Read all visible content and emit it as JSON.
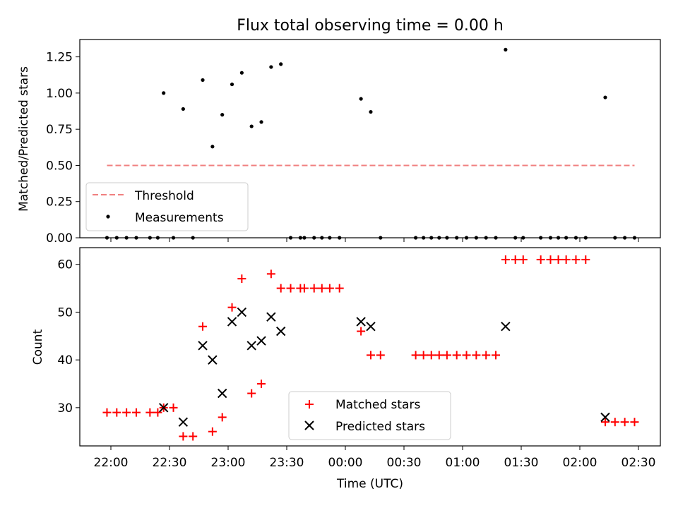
{
  "chart_data": [
    {
      "type": "scatter",
      "title": "Flux total observing time = 0.00 h",
      "ylabel": "Matched/Predicted stars",
      "ylim": [
        0,
        1.37
      ],
      "yticks": [
        "0.00",
        "0.25",
        "0.50",
        "0.75",
        "1.00",
        "1.25"
      ],
      "legend": {
        "placement": "lower-left",
        "entries": [
          "Threshold",
          "Measurements"
        ]
      },
      "threshold": {
        "name": "Threshold",
        "value": 0.5,
        "color": "#f08080",
        "x_start": "21:58",
        "x_end": "02:28"
      },
      "series": [
        {
          "name": "Measurements",
          "color": "#000000",
          "points": [
            [
              "21:58",
              0
            ],
            [
              "22:03",
              0
            ],
            [
              "22:08",
              0
            ],
            [
              "22:13",
              0
            ],
            [
              "22:20",
              0
            ],
            [
              "22:24",
              0
            ],
            [
              "22:27",
              1.0
            ],
            [
              "22:32",
              0
            ],
            [
              "22:37",
              0.89
            ],
            [
              "22:42",
              0
            ],
            [
              "22:47",
              1.09
            ],
            [
              "22:52",
              0.63
            ],
            [
              "22:57",
              0.85
            ],
            [
              "23:02",
              1.06
            ],
            [
              "23:07",
              1.14
            ],
            [
              "23:12",
              0.77
            ],
            [
              "23:17",
              0.8
            ],
            [
              "23:22",
              1.18
            ],
            [
              "23:27",
              1.2
            ],
            [
              "23:32",
              0
            ],
            [
              "23:37",
              0
            ],
            [
              "23:39",
              0
            ],
            [
              "23:44",
              0
            ],
            [
              "23:48",
              0
            ],
            [
              "23:52",
              0
            ],
            [
              "23:57",
              0
            ],
            [
              "00:08",
              0.96
            ],
            [
              "00:13",
              0.87
            ],
            [
              "00:18",
              0
            ],
            [
              "00:36",
              0
            ],
            [
              "00:40",
              0
            ],
            [
              "00:44",
              0
            ],
            [
              "00:48",
              0
            ],
            [
              "00:52",
              0
            ],
            [
              "00:57",
              0
            ],
            [
              "01:02",
              0
            ],
            [
              "01:07",
              0
            ],
            [
              "01:12",
              0
            ],
            [
              "01:17",
              0
            ],
            [
              "01:22",
              1.3
            ],
            [
              "01:27",
              0
            ],
            [
              "01:31",
              0
            ],
            [
              "01:40",
              0
            ],
            [
              "01:45",
              0
            ],
            [
              "01:49",
              0
            ],
            [
              "01:53",
              0
            ],
            [
              "01:58",
              0
            ],
            [
              "02:03",
              0
            ],
            [
              "02:13",
              0.97
            ],
            [
              "02:18",
              0
            ],
            [
              "02:23",
              0
            ],
            [
              "02:28",
              0
            ]
          ]
        }
      ]
    },
    {
      "type": "scatter",
      "xlabel": "Time (UTC)",
      "ylabel": "Count",
      "ylim": [
        22,
        63.5
      ],
      "yticks": [
        "30",
        "40",
        "50",
        "60"
      ],
      "xticks": [
        "22:00",
        "22:30",
        "23:00",
        "23:30",
        "00:00",
        "00:30",
        "01:00",
        "01:30",
        "02:00",
        "02:30"
      ],
      "legend": {
        "placement": "lower-center",
        "entries": [
          "Matched stars",
          "Predicted stars"
        ]
      },
      "series": [
        {
          "name": "Matched stars",
          "color": "#ff0000",
          "marker": "plus",
          "points": [
            [
              "21:58",
              29
            ],
            [
              "22:03",
              29
            ],
            [
              "22:08",
              29
            ],
            [
              "22:13",
              29
            ],
            [
              "22:20",
              29
            ],
            [
              "22:24",
              29
            ],
            [
              "22:27",
              30
            ],
            [
              "22:32",
              30
            ],
            [
              "22:37",
              24
            ],
            [
              "22:42",
              24
            ],
            [
              "22:47",
              47
            ],
            [
              "22:52",
              25
            ],
            [
              "22:57",
              28
            ],
            [
              "23:02",
              51
            ],
            [
              "23:07",
              57
            ],
            [
              "23:12",
              33
            ],
            [
              "23:17",
              35
            ],
            [
              "23:22",
              58
            ],
            [
              "23:27",
              55
            ],
            [
              "23:32",
              55
            ],
            [
              "23:37",
              55
            ],
            [
              "23:39",
              55
            ],
            [
              "23:44",
              55
            ],
            [
              "23:48",
              55
            ],
            [
              "23:52",
              55
            ],
            [
              "23:57",
              55
            ],
            [
              "00:08",
              46
            ],
            [
              "00:13",
              41
            ],
            [
              "00:18",
              41
            ],
            [
              "00:36",
              41
            ],
            [
              "00:40",
              41
            ],
            [
              "00:44",
              41
            ],
            [
              "00:48",
              41
            ],
            [
              "00:52",
              41
            ],
            [
              "00:57",
              41
            ],
            [
              "01:02",
              41
            ],
            [
              "01:07",
              41
            ],
            [
              "01:12",
              41
            ],
            [
              "01:17",
              41
            ],
            [
              "01:22",
              61
            ],
            [
              "01:27",
              61
            ],
            [
              "01:31",
              61
            ],
            [
              "01:40",
              61
            ],
            [
              "01:45",
              61
            ],
            [
              "01:49",
              61
            ],
            [
              "01:53",
              61
            ],
            [
              "01:58",
              61
            ],
            [
              "02:03",
              61
            ],
            [
              "02:13",
              27
            ],
            [
              "02:18",
              27
            ],
            [
              "02:23",
              27
            ],
            [
              "02:28",
              27
            ]
          ]
        },
        {
          "name": "Predicted stars",
          "color": "#000000",
          "marker": "x",
          "points": [
            [
              "22:27",
              30
            ],
            [
              "22:37",
              27
            ],
            [
              "22:47",
              43
            ],
            [
              "22:52",
              40
            ],
            [
              "22:57",
              33
            ],
            [
              "23:02",
              48
            ],
            [
              "23:07",
              50
            ],
            [
              "23:12",
              43
            ],
            [
              "23:17",
              44
            ],
            [
              "23:22",
              49
            ],
            [
              "23:27",
              46
            ],
            [
              "00:08",
              48
            ],
            [
              "00:13",
              47
            ],
            [
              "01:22",
              47
            ],
            [
              "02:13",
              28
            ]
          ]
        }
      ]
    }
  ]
}
